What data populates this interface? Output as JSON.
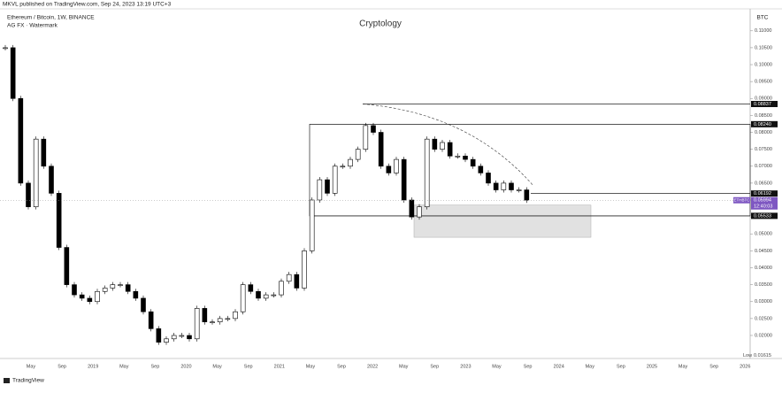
{
  "header": {
    "published": "MKVL published on TradingView.com, Sep 24, 2023 13:19 UTC+3",
    "symbol": "Ethereum / Bitcoin, 1W, BINANCE",
    "watermark": "AG FX · Watermark",
    "currency": "BTC",
    "logo": "TradingView"
  },
  "chart_data": {
    "type": "candlestick",
    "title": "Cryptology",
    "series": [
      {
        "name": "ETHBTC",
        "up_color": "#ffffff",
        "down_color": "#000000",
        "values": [
          0.105,
          0.09,
          0.065,
          0.058,
          0.078,
          0.07,
          0.062,
          0.046,
          0.035,
          0.032,
          0.031,
          0.03,
          0.033,
          0.034,
          0.035,
          0.035,
          0.033,
          0.031,
          0.027,
          0.022,
          0.018,
          0.019,
          0.02,
          0.02,
          0.019,
          0.028,
          0.024,
          0.024,
          0.025,
          0.025,
          0.027,
          0.035,
          0.033,
          0.031,
          0.032,
          0.032,
          0.036,
          0.038,
          0.034,
          0.045,
          0.06,
          0.066,
          0.062,
          0.07,
          0.07,
          0.072,
          0.075,
          0.082,
          0.08,
          0.07,
          0.068,
          0.072,
          0.06,
          0.055,
          0.058,
          0.078,
          0.075,
          0.077,
          0.073,
          0.073,
          0.072,
          0.07,
          0.068,
          0.065,
          0.063,
          0.065,
          0.063,
          0.063,
          0.05994
        ]
      }
    ],
    "last_price": {
      "value": 0.05994,
      "label": "0.05994"
    },
    "countdown": "12:40:03",
    "low": {
      "text": "Low",
      "value": 0.01615,
      "label": "0.01615"
    },
    "levels": [
      {
        "value": 0.08837,
        "label": "0.08837"
      },
      {
        "value": 0.0824,
        "label": "0.08240"
      },
      {
        "value": 0.06192,
        "label": "0.06192"
      },
      {
        "value": 0.05533,
        "label": "0.05533"
      }
    ],
    "zone": [
      0.049,
      0.0585
    ],
    "ylim": [
      0.0132,
      0.117
    ],
    "yticks": [
      {
        "value": 0.02,
        "label": "0.02000"
      },
      {
        "value": 0.025,
        "label": "0.02500"
      },
      {
        "value": 0.03,
        "label": "0.03000"
      },
      {
        "value": 0.035,
        "label": "0.03500"
      },
      {
        "value": 0.04,
        "label": "0.04000"
      },
      {
        "value": 0.045,
        "label": "0.04500"
      },
      {
        "value": 0.05,
        "label": "0.05000"
      },
      {
        "value": 0.055,
        "label": "0.05500"
      },
      {
        "value": 0.06,
        "label": "0.06000"
      },
      {
        "value": 0.065,
        "label": "0.06500"
      },
      {
        "value": 0.07,
        "label": "0.07000"
      },
      {
        "value": 0.075,
        "label": "0.07500"
      },
      {
        "value": 0.08,
        "label": "0.08000"
      },
      {
        "value": 0.085,
        "label": "0.08500"
      },
      {
        "value": 0.09,
        "label": "0.09000"
      },
      {
        "value": 0.095,
        "label": "0.09500"
      },
      {
        "value": 0.1,
        "label": "0.10000"
      },
      {
        "value": 0.105,
        "label": "0.10500"
      },
      {
        "value": 0.11,
        "label": "0.11000"
      }
    ],
    "x_labels": [
      "May",
      "Sep",
      "2019",
      "May",
      "Sep",
      "2020",
      "May",
      "Sep",
      "2021",
      "May",
      "Sep",
      "2022",
      "May",
      "Sep",
      "2023",
      "May",
      "Sep",
      "2024",
      "May",
      "Sep",
      "2025",
      "May",
      "Sep",
      "2026"
    ]
  }
}
